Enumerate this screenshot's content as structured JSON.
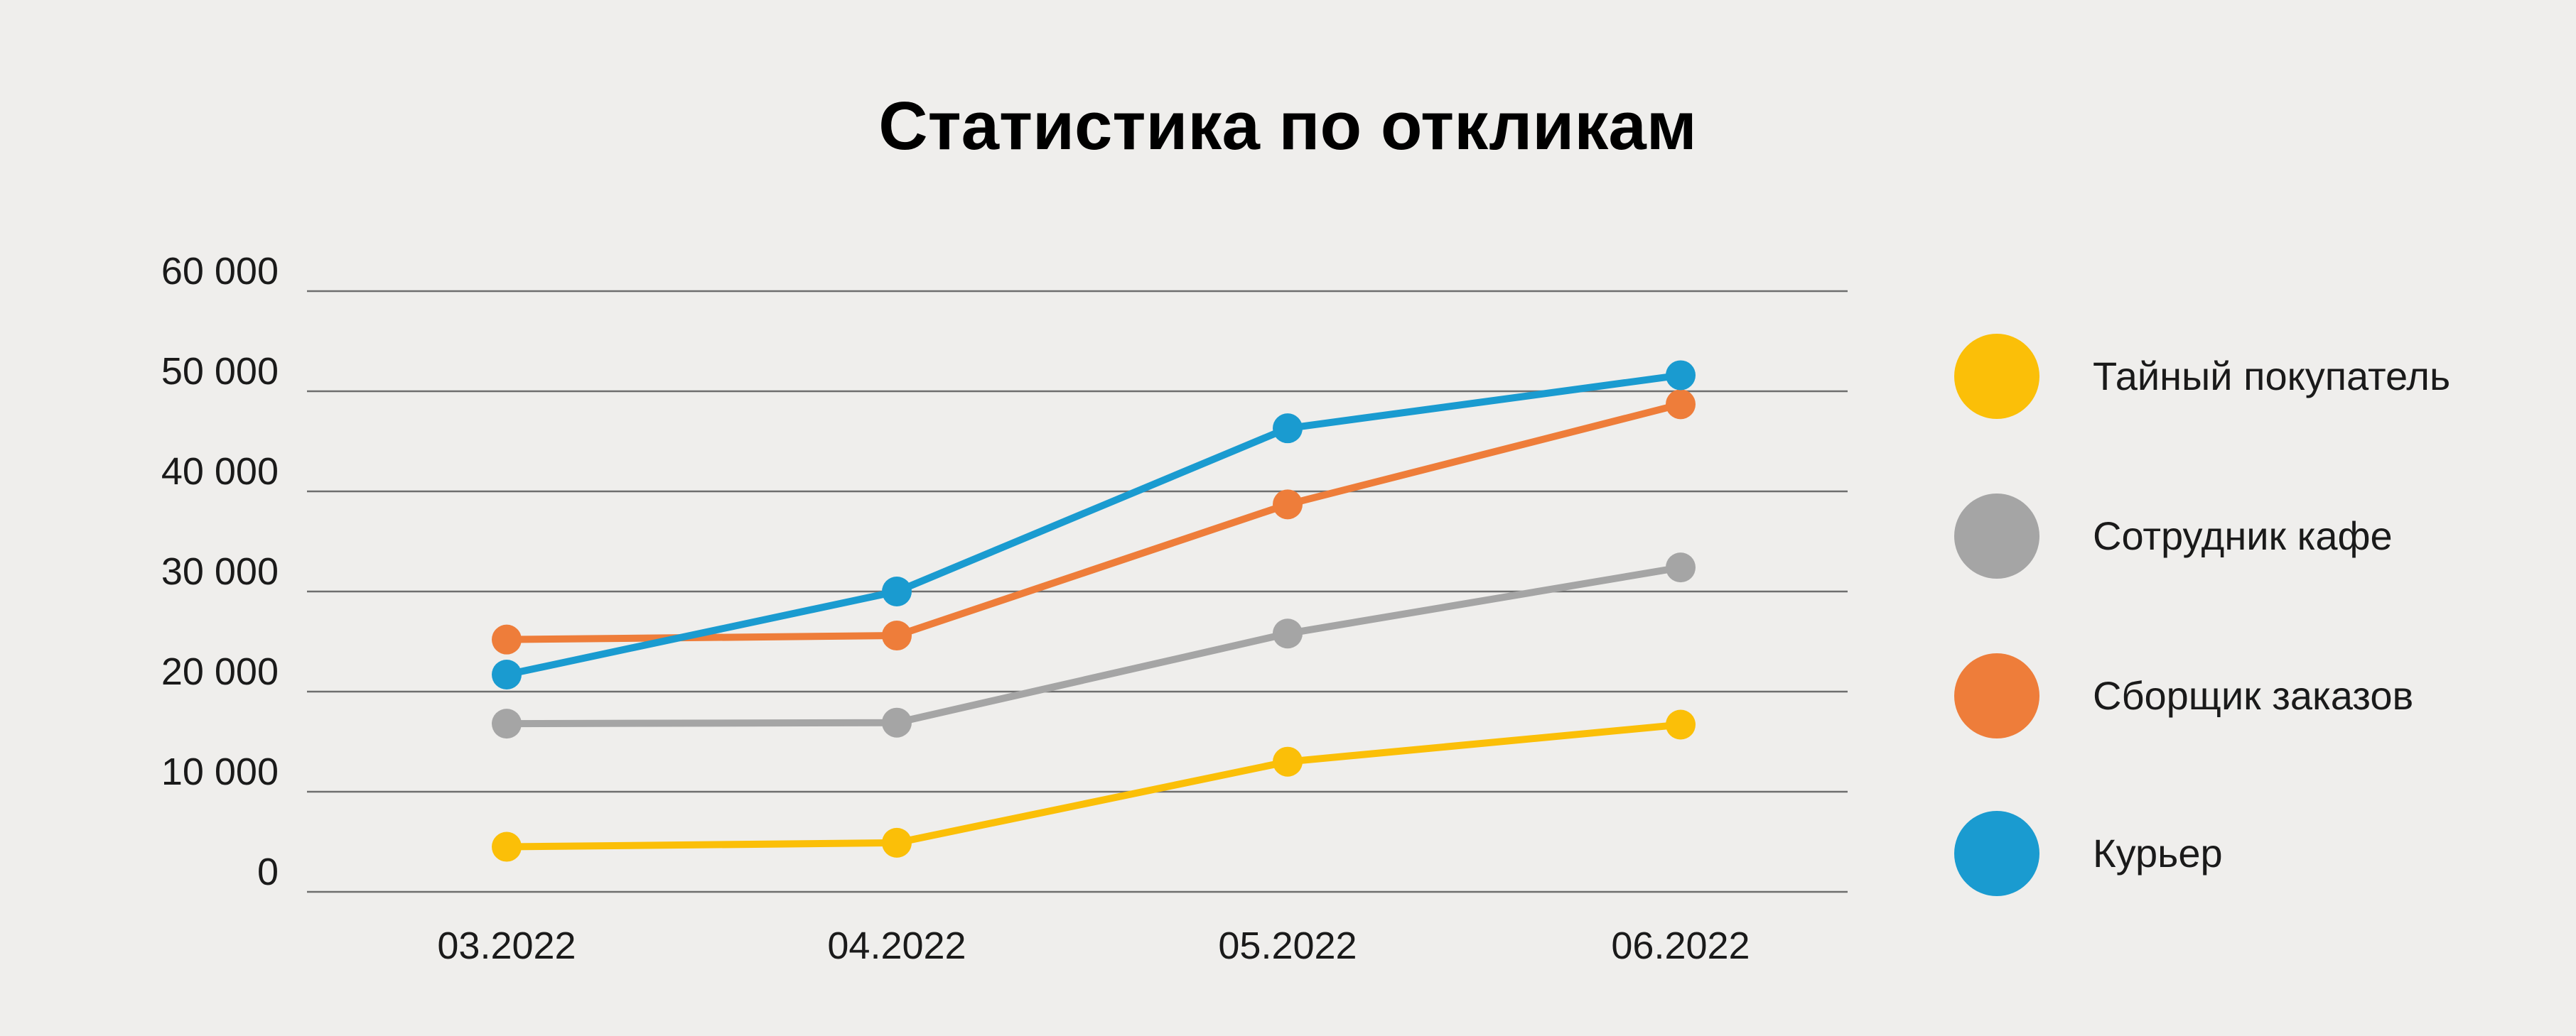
{
  "chart_data": {
    "type": "line",
    "title": "Статистика по откликам",
    "categories": [
      "03.2022",
      "04.2022",
      "05.2022",
      "06.2022"
    ],
    "y_ticks": [
      "0",
      "10 000",
      "20 000",
      "30 000",
      "40 000",
      "50 000",
      "60 000"
    ],
    "ylim": [
      0,
      60000
    ],
    "grid": true,
    "legend_position": "right",
    "series": [
      {
        "name": "Тайный покупатель",
        "color": "#fbbf08",
        "values": [
          4500,
          4900,
          13000,
          16700
        ]
      },
      {
        "name": "Сотрудник кафе",
        "color": "#a5a5a5",
        "values": [
          16800,
          16900,
          25800,
          32400
        ]
      },
      {
        "name": "Сборщик заказов",
        "color": "#ee7d3a",
        "values": [
          25200,
          25600,
          38700,
          48700
        ]
      },
      {
        "name": "Курьер",
        "color": "#1a9bd0",
        "values": [
          21700,
          30000,
          46300,
          51600
        ]
      }
    ]
  }
}
